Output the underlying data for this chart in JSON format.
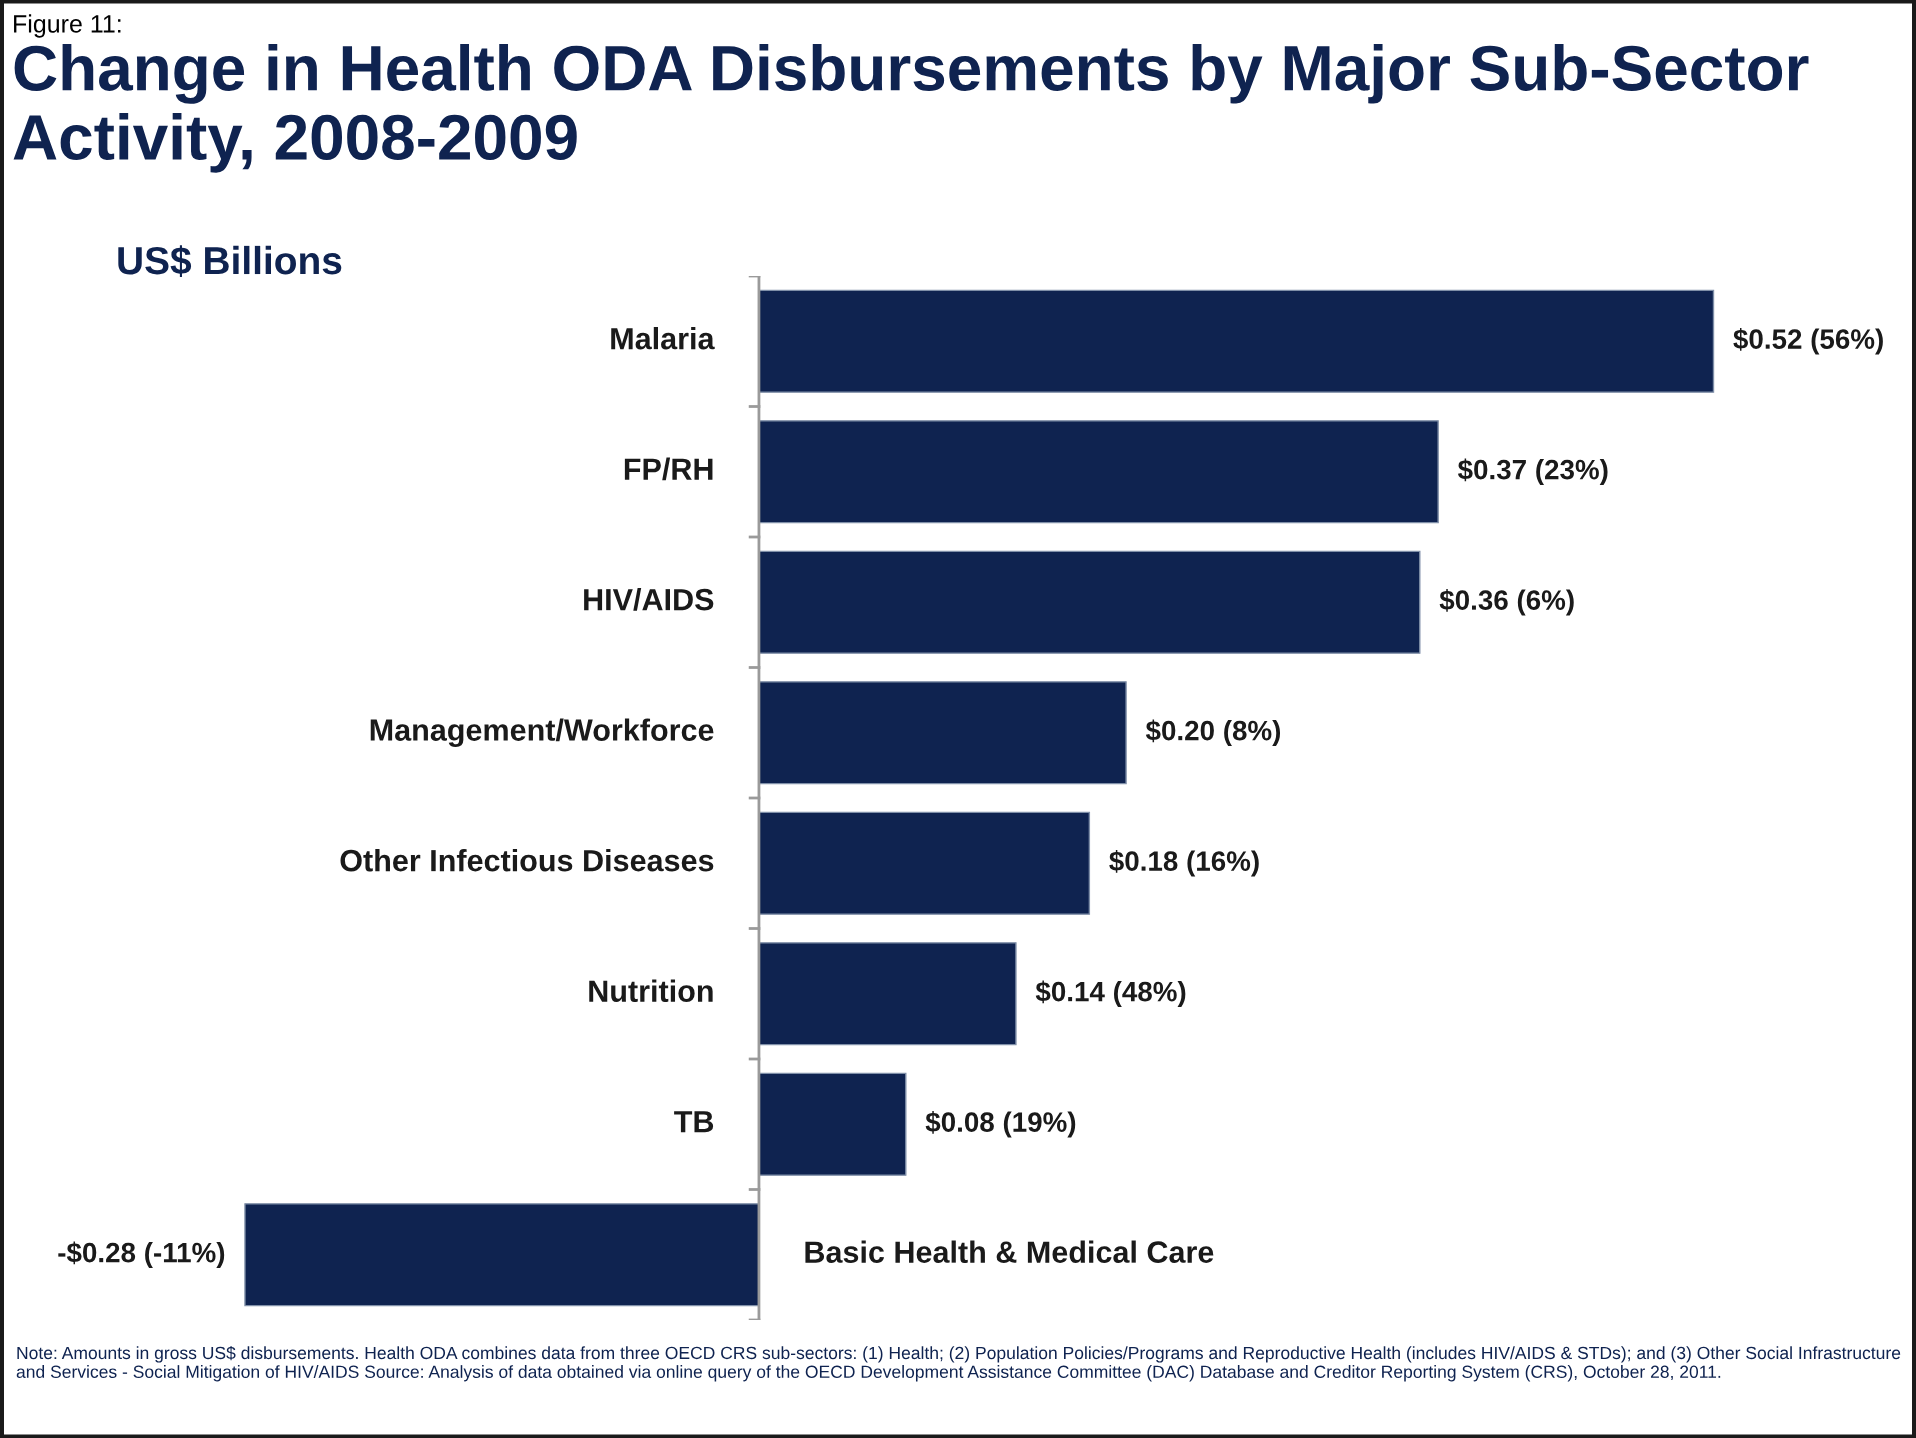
{
  "chart_data": {
    "type": "bar",
    "orientation": "horizontal",
    "title": "Change in Health ODA Disbursements by Major Sub-Sector Activity, 2008-2009",
    "annotations": [
      "Figure 11:",
      "US$ Billions",
      "Note: Amounts in gross US$ disbursements. Health ODA combines data from three OECD CRS sub-sectors: (1) Health; (2) Population Policies/Programs and Reproductive Health (includes HIV/AIDS & STDs); and (3) Other Social Infrastructure and Services - Social Mitigation of HIV/AIDS Source: Analysis of data obtained via online query of the OECD Development Assistance Committee (DAC) Database and Creditor Reporting System (CRS), October 28, 2011."
    ],
    "categories": [
      "Malaria",
      "FP/RH",
      "HIV/AIDS",
      "Management/Workforce",
      "Other Infectious Diseases",
      "Nutrition",
      "TB",
      "Basic Health & Medical Care"
    ],
    "values": [
      0.52,
      0.37,
      0.36,
      0.2,
      0.18,
      0.14,
      0.08,
      -0.28
    ],
    "value_labels": [
      "$0.52 (56%)",
      "$0.37 (23%)",
      "$0.36 (6%)",
      "$0.20 (8%)",
      "$0.18 (16%)",
      "$0.14 (48%)",
      "$0.08 (19%)",
      "-$0.28 (-11%)"
    ],
    "color": "#0f2350"
  }
}
